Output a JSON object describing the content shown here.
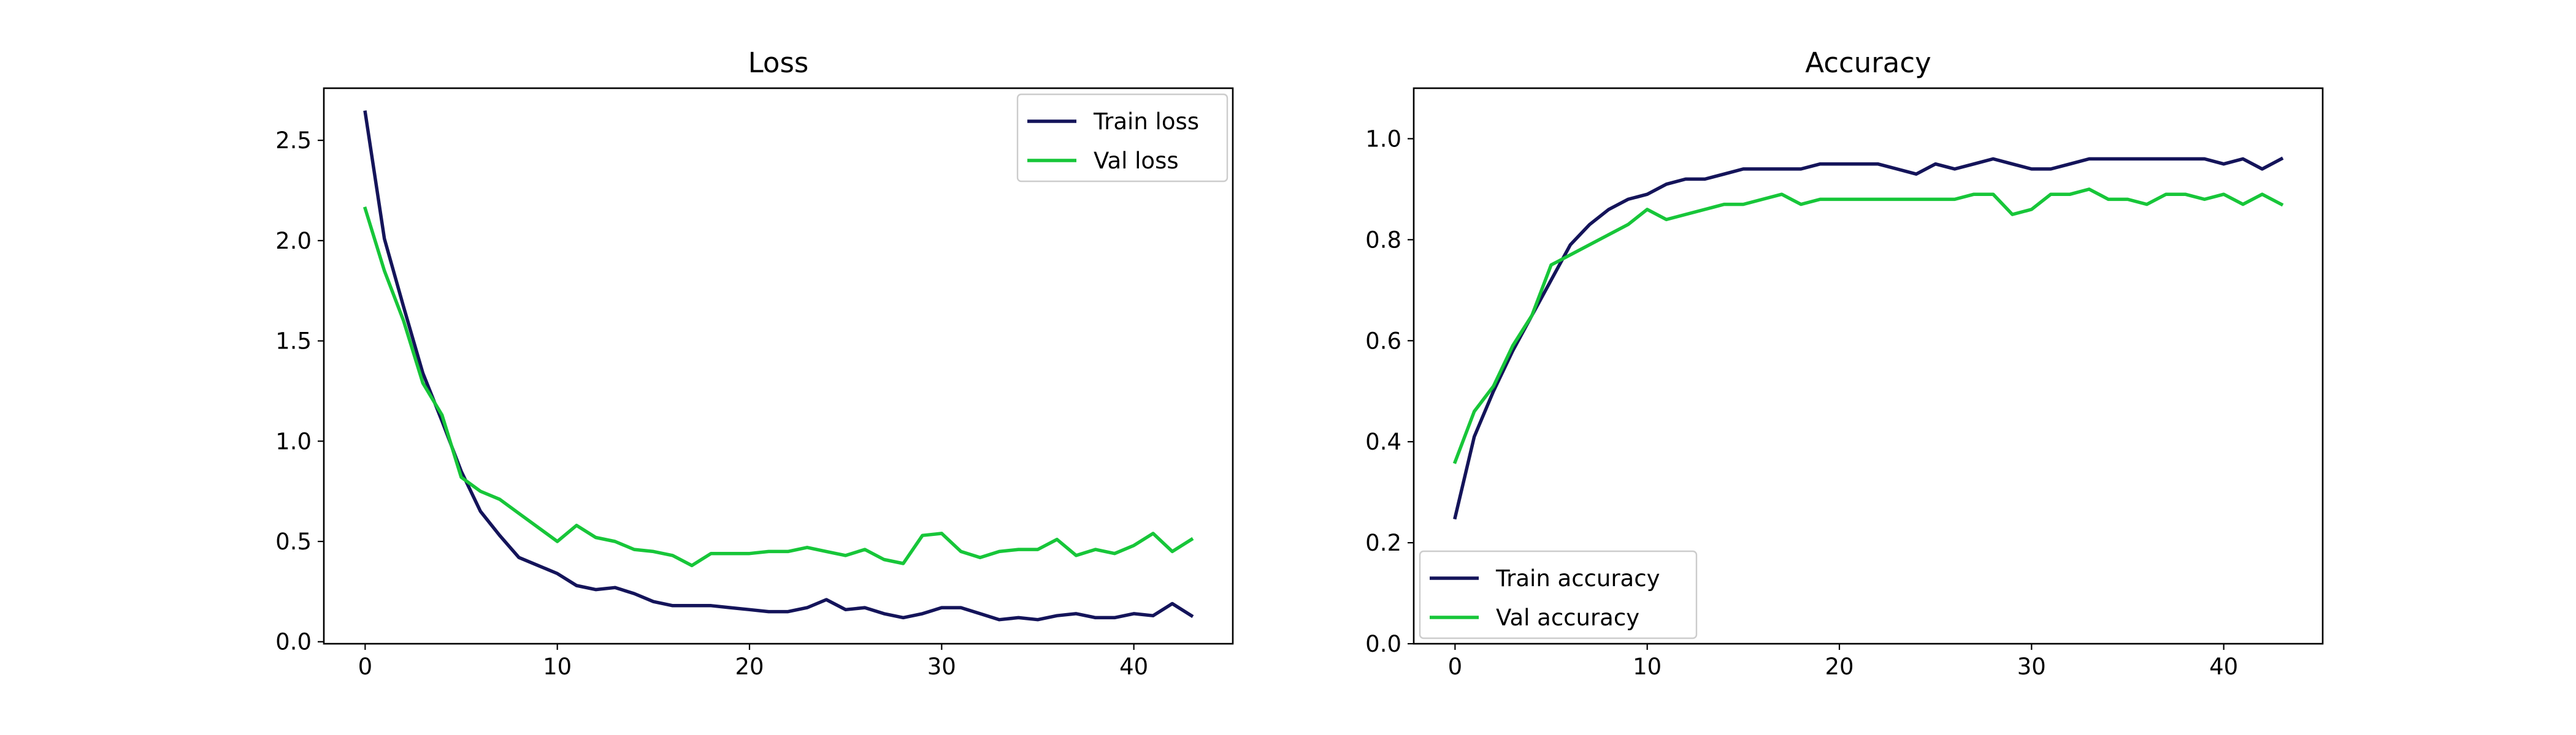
{
  "chart_data": [
    {
      "type": "line",
      "title": "Loss",
      "xlabel": "",
      "ylabel": "",
      "xlim": [
        -2.15,
        45.15
      ],
      "ylim": [
        -0.01,
        2.76
      ],
      "xticks": [
        0,
        10,
        20,
        30,
        40
      ],
      "yticks": [
        0.0,
        0.5,
        1.0,
        1.5,
        2.0,
        2.5
      ],
      "tick_labels_x": [
        "0",
        "10",
        "20",
        "30",
        "40"
      ],
      "tick_labels_y": [
        "0.0",
        "0.5",
        "1.0",
        "1.5",
        "2.0",
        "2.5"
      ],
      "legend_position": "top-right",
      "grid": false,
      "x": [
        0,
        1,
        2,
        3,
        4,
        5,
        6,
        7,
        8,
        9,
        10,
        11,
        12,
        13,
        14,
        15,
        16,
        17,
        18,
        19,
        20,
        21,
        22,
        23,
        24,
        25,
        26,
        27,
        28,
        29,
        30,
        31,
        32,
        33,
        34,
        35,
        36,
        37,
        38,
        39,
        40,
        41,
        42,
        43
      ],
      "series": [
        {
          "name": "Train loss",
          "color": "#14145a",
          "values": [
            2.64,
            2.01,
            1.67,
            1.34,
            1.1,
            0.85,
            0.65,
            0.53,
            0.42,
            0.38,
            0.34,
            0.28,
            0.26,
            0.27,
            0.24,
            0.2,
            0.18,
            0.18,
            0.18,
            0.17,
            0.16,
            0.15,
            0.15,
            0.17,
            0.21,
            0.16,
            0.17,
            0.14,
            0.12,
            0.14,
            0.17,
            0.17,
            0.14,
            0.11,
            0.12,
            0.11,
            0.13,
            0.14,
            0.12,
            0.12,
            0.14,
            0.13,
            0.19,
            0.13
          ]
        },
        {
          "name": "Val loss",
          "color": "#17c639",
          "values": [
            2.16,
            1.85,
            1.6,
            1.29,
            1.13,
            0.82,
            0.75,
            0.71,
            0.64,
            0.57,
            0.5,
            0.58,
            0.52,
            0.5,
            0.46,
            0.45,
            0.43,
            0.38,
            0.44,
            0.44,
            0.44,
            0.45,
            0.45,
            0.47,
            0.45,
            0.43,
            0.46,
            0.41,
            0.39,
            0.53,
            0.54,
            0.45,
            0.42,
            0.45,
            0.46,
            0.46,
            0.51,
            0.43,
            0.46,
            0.44,
            0.48,
            0.54,
            0.45,
            0.51
          ]
        }
      ]
    },
    {
      "type": "line",
      "title": "Accuracy",
      "xlabel": "",
      "ylabel": "",
      "xlim": [
        -2.15,
        45.15
      ],
      "ylim": [
        0.0,
        1.1
      ],
      "xticks": [
        0,
        10,
        20,
        30,
        40
      ],
      "yticks": [
        0.0,
        0.2,
        0.4,
        0.6,
        0.8,
        1.0
      ],
      "tick_labels_x": [
        "0",
        "10",
        "20",
        "30",
        "40"
      ],
      "tick_labels_y": [
        "0.0",
        "0.2",
        "0.4",
        "0.6",
        "0.8",
        "1.0"
      ],
      "legend_position": "bottom-left",
      "grid": false,
      "x": [
        0,
        1,
        2,
        3,
        4,
        5,
        6,
        7,
        8,
        9,
        10,
        11,
        12,
        13,
        14,
        15,
        16,
        17,
        18,
        19,
        20,
        21,
        22,
        23,
        24,
        25,
        26,
        27,
        28,
        29,
        30,
        31,
        32,
        33,
        34,
        35,
        36,
        37,
        38,
        39,
        40,
        41,
        42,
        43
      ],
      "series": [
        {
          "name": "Train accuracy",
          "color": "#14145a",
          "values": [
            0.25,
            0.41,
            0.5,
            0.58,
            0.65,
            0.72,
            0.79,
            0.83,
            0.86,
            0.88,
            0.89,
            0.91,
            0.92,
            0.92,
            0.93,
            0.94,
            0.94,
            0.94,
            0.94,
            0.95,
            0.95,
            0.95,
            0.95,
            0.94,
            0.93,
            0.95,
            0.94,
            0.95,
            0.96,
            0.95,
            0.94,
            0.94,
            0.95,
            0.96,
            0.96,
            0.96,
            0.96,
            0.96,
            0.96,
            0.96,
            0.95,
            0.96,
            0.94,
            0.96
          ]
        },
        {
          "name": "Val accuracy",
          "color": "#17c639",
          "values": [
            0.36,
            0.46,
            0.51,
            0.59,
            0.65,
            0.75,
            0.77,
            0.79,
            0.81,
            0.83,
            0.86,
            0.84,
            0.85,
            0.86,
            0.87,
            0.87,
            0.88,
            0.89,
            0.87,
            0.88,
            0.88,
            0.88,
            0.88,
            0.88,
            0.88,
            0.88,
            0.88,
            0.89,
            0.89,
            0.85,
            0.86,
            0.89,
            0.89,
            0.9,
            0.88,
            0.88,
            0.87,
            0.89,
            0.89,
            0.88,
            0.89,
            0.87,
            0.89,
            0.87
          ]
        }
      ]
    }
  ]
}
